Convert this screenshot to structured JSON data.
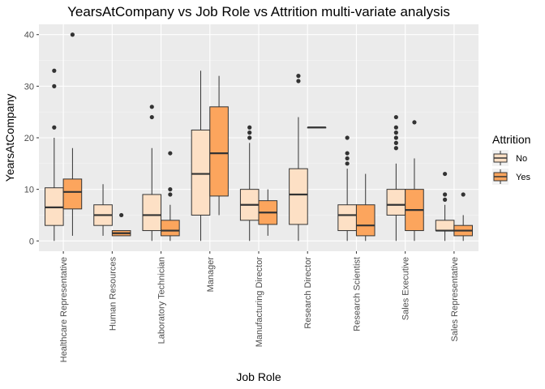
{
  "chart_data": {
    "type": "boxplot",
    "title": "YearsAtCompany vs Job Role vs Attrition multi-variate analysis",
    "xlabel": "Job Role",
    "ylabel": "YearsAtCompany",
    "ylim": [
      -2,
      42
    ],
    "yticks": [
      0,
      10,
      20,
      30,
      40
    ],
    "grid": true,
    "legend": {
      "title": "Attrition",
      "position": "right",
      "entries": [
        {
          "label": "No",
          "color": "#fde0c5"
        },
        {
          "label": "Yes",
          "color": "#fca55d"
        }
      ]
    },
    "categories": [
      "Healthcare Representative",
      "Human Resources",
      "Laboratory Technician",
      "Manager",
      "Manufacturing Director",
      "Research Director",
      "Research Scientist",
      "Sales Executive",
      "Sales Representative"
    ],
    "series": [
      {
        "name": "No",
        "color": "#fde0c5",
        "boxes": [
          {
            "min": 0,
            "q1": 3,
            "median": 6.5,
            "q3": 10.3,
            "max": 20,
            "outliers": [
              22,
              30,
              33
            ]
          },
          {
            "min": 1,
            "q1": 3,
            "median": 5,
            "q3": 7,
            "max": 11,
            "outliers": []
          },
          {
            "min": 0,
            "q1": 2,
            "median": 5,
            "q3": 9,
            "max": 18,
            "outliers": [
              24,
              26
            ]
          },
          {
            "min": 0,
            "q1": 5,
            "median": 13,
            "q3": 21.5,
            "max": 33,
            "outliers": []
          },
          {
            "min": 0,
            "q1": 4,
            "median": 7,
            "q3": 10,
            "max": 19,
            "outliers": [
              20,
              21,
              22
            ]
          },
          {
            "min": 0,
            "q1": 3.2,
            "median": 9,
            "q3": 14,
            "max": 24,
            "outliers": [
              31,
              32
            ]
          },
          {
            "min": 0,
            "q1": 2,
            "median": 5,
            "q3": 7,
            "max": 14,
            "outliers": [
              15,
              16,
              17,
              20
            ]
          },
          {
            "min": 0,
            "q1": 5,
            "median": 7,
            "q3": 10,
            "max": 15,
            "outliers": [
              18,
              19,
              20,
              21,
              22,
              24
            ]
          },
          {
            "min": 0,
            "q1": 2,
            "median": 2,
            "q3": 4,
            "max": 7,
            "outliers": [
              8,
              9,
              13
            ]
          }
        ]
      },
      {
        "name": "Yes",
        "color": "#fca55d",
        "boxes": [
          {
            "min": 1,
            "q1": 6.2,
            "median": 9.5,
            "q3": 12,
            "max": 18,
            "outliers": [
              40
            ]
          },
          {
            "min": 1,
            "q1": 1,
            "median": 1.5,
            "q3": 2,
            "max": 2,
            "outliers": [
              5
            ]
          },
          {
            "min": 0,
            "q1": 1,
            "median": 2,
            "q3": 4,
            "max": 7,
            "outliers": [
              9,
              10,
              17
            ]
          },
          {
            "min": 5,
            "q1": 8.7,
            "median": 17,
            "q3": 26,
            "max": 32,
            "outliers": []
          },
          {
            "min": 1,
            "q1": 3.2,
            "median": 5.5,
            "q3": 7.8,
            "max": 10,
            "outliers": []
          },
          {
            "min": 22,
            "q1": 22,
            "median": 22,
            "q3": 22,
            "max": 22,
            "outliers": []
          },
          {
            "min": 0,
            "q1": 1,
            "median": 3,
            "q3": 7,
            "max": 13,
            "outliers": []
          },
          {
            "min": 0,
            "q1": 2,
            "median": 6,
            "q3": 10,
            "max": 16,
            "outliers": [
              23
            ]
          },
          {
            "min": 0,
            "q1": 1,
            "median": 2,
            "q3": 3,
            "max": 5,
            "outliers": [
              9
            ]
          }
        ]
      }
    ]
  }
}
